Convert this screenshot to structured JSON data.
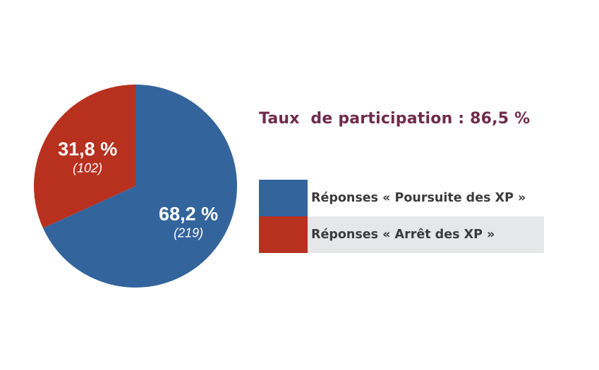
{
  "chart_data": {
    "type": "pie",
    "title": "Taux  de participation : 86,5 %",
    "slices": [
      {
        "name": "Réponses « Poursuite des XP »",
        "value": 68.2,
        "percent_label": "68,2 %",
        "count_label": "(219)",
        "color": "#33649c"
      },
      {
        "name": "Réponses « Arrêt des XP »",
        "value": 31.8,
        "percent_label": "31,8 %",
        "count_label": "(102)",
        "color": "#b8311f"
      }
    ],
    "legend": {
      "placement": "right",
      "shaded_row_color": "#e6e7e9"
    },
    "colors": {
      "title": "#6f2b4a",
      "legend_text": "#3b3b3b",
      "slice_text": "#ffffff"
    }
  }
}
